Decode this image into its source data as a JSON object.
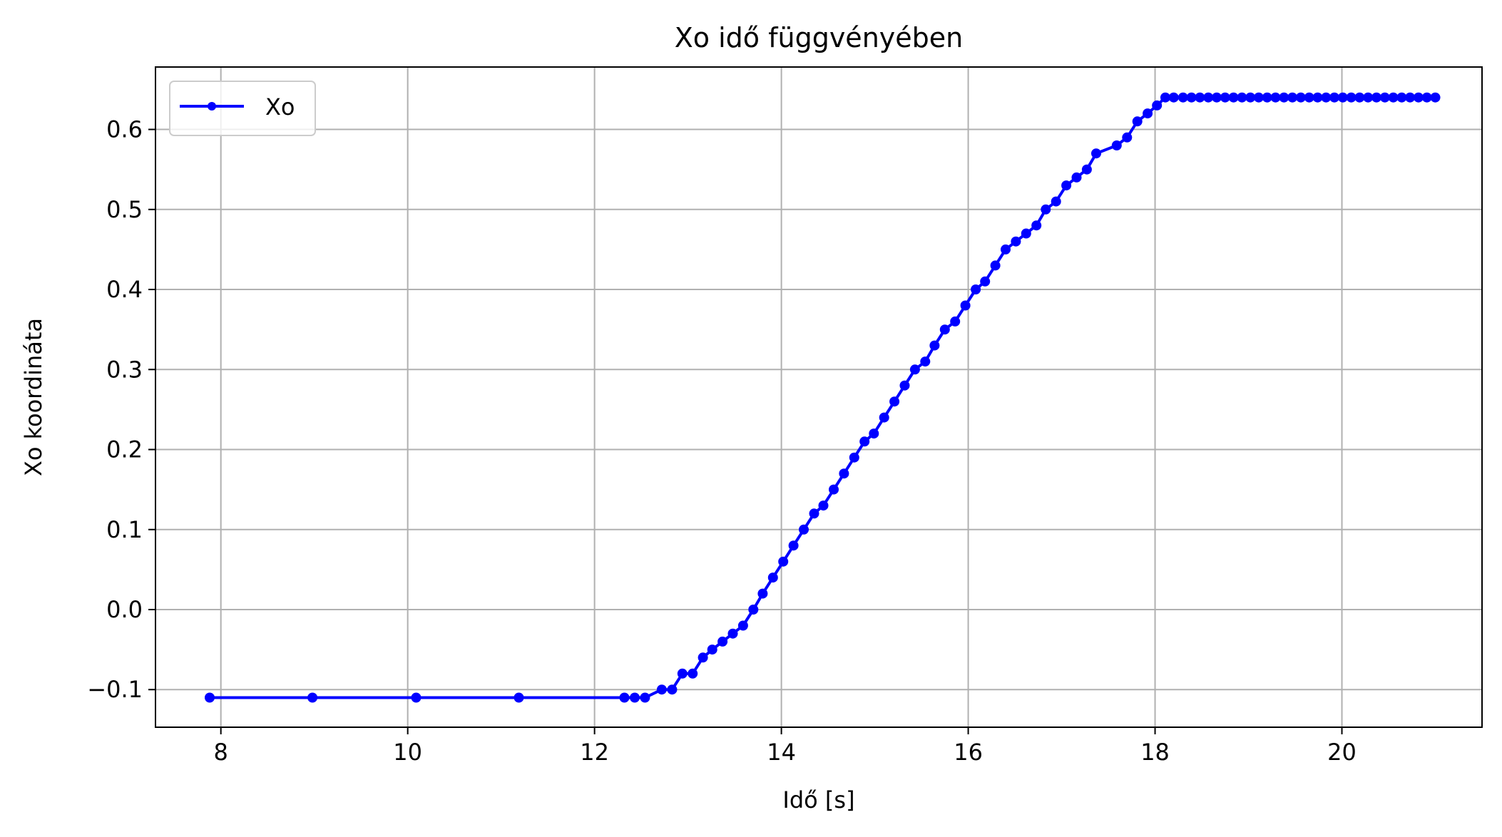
{
  "chart_data": {
    "type": "line",
    "title": "Xo idő függvényében",
    "xlabel": "Idő [s]",
    "ylabel": "Xo koordináta",
    "xlim": [
      7.3,
      21.5
    ],
    "ylim": [
      -0.147,
      0.678
    ],
    "xticks": [
      8,
      10,
      12,
      14,
      16,
      18,
      20
    ],
    "yticks": [
      -0.1,
      0.0,
      0.1,
      0.2,
      0.3,
      0.4,
      0.5,
      0.6
    ],
    "ytick_labels": [
      "−0.1",
      "0.0",
      "0.1",
      "0.2",
      "0.3",
      "0.4",
      "0.5",
      "0.6"
    ],
    "grid": true,
    "legend_position": "top-left",
    "series": [
      {
        "name": "Xo",
        "color": "#0000ff",
        "marker": "circle",
        "points": [
          [
            7.88,
            -0.11
          ],
          [
            8.98,
            -0.11
          ],
          [
            10.09,
            -0.11
          ],
          [
            11.19,
            -0.11
          ],
          [
            12.32,
            -0.11
          ],
          [
            12.43,
            -0.11
          ],
          [
            12.54,
            -0.11
          ],
          [
            12.72,
            -0.1
          ],
          [
            12.83,
            -0.1
          ],
          [
            12.94,
            -0.08
          ],
          [
            13.05,
            -0.08
          ],
          [
            13.16,
            -0.06
          ],
          [
            13.26,
            -0.05
          ],
          [
            13.37,
            -0.04
          ],
          [
            13.48,
            -0.03
          ],
          [
            13.59,
            -0.02
          ],
          [
            13.7,
            0.0
          ],
          [
            13.8,
            0.02
          ],
          [
            13.91,
            0.04
          ],
          [
            14.02,
            0.06
          ],
          [
            14.13,
            0.08
          ],
          [
            14.24,
            0.1
          ],
          [
            14.35,
            0.12
          ],
          [
            14.45,
            0.13
          ],
          [
            14.56,
            0.15
          ],
          [
            14.67,
            0.17
          ],
          [
            14.78,
            0.19
          ],
          [
            14.89,
            0.21
          ],
          [
            14.99,
            0.22
          ],
          [
            15.1,
            0.24
          ],
          [
            15.21,
            0.26
          ],
          [
            15.32,
            0.28
          ],
          [
            15.43,
            0.3
          ],
          [
            15.54,
            0.31
          ],
          [
            15.64,
            0.33
          ],
          [
            15.75,
            0.35
          ],
          [
            15.86,
            0.36
          ],
          [
            15.97,
            0.38
          ],
          [
            16.08,
            0.4
          ],
          [
            16.18,
            0.41
          ],
          [
            16.29,
            0.43
          ],
          [
            16.4,
            0.45
          ],
          [
            16.51,
            0.46
          ],
          [
            16.62,
            0.47
          ],
          [
            16.73,
            0.48
          ],
          [
            16.83,
            0.5
          ],
          [
            16.94,
            0.51
          ],
          [
            17.05,
            0.53
          ],
          [
            17.16,
            0.54
          ],
          [
            17.27,
            0.55
          ],
          [
            17.37,
            0.57
          ],
          [
            17.59,
            0.58
          ],
          [
            17.7,
            0.59
          ],
          [
            17.81,
            0.61
          ],
          [
            17.92,
            0.62
          ],
          [
            18.02,
            0.63
          ],
          [
            18.11,
            0.64
          ],
          [
            18.2,
            0.64
          ],
          [
            18.3,
            0.64
          ],
          [
            18.39,
            0.64
          ],
          [
            18.48,
            0.64
          ],
          [
            18.57,
            0.64
          ],
          [
            18.66,
            0.64
          ],
          [
            18.75,
            0.64
          ],
          [
            18.84,
            0.64
          ],
          [
            18.93,
            0.64
          ],
          [
            19.02,
            0.64
          ],
          [
            19.11,
            0.64
          ],
          [
            19.2,
            0.64
          ],
          [
            19.29,
            0.64
          ],
          [
            19.38,
            0.64
          ],
          [
            19.47,
            0.64
          ],
          [
            19.56,
            0.64
          ],
          [
            19.65,
            0.64
          ],
          [
            19.74,
            0.64
          ],
          [
            19.83,
            0.64
          ],
          [
            19.92,
            0.64
          ],
          [
            20.01,
            0.64
          ],
          [
            20.1,
            0.64
          ],
          [
            20.19,
            0.64
          ],
          [
            20.28,
            0.64
          ],
          [
            20.37,
            0.64
          ],
          [
            20.46,
            0.64
          ],
          [
            20.55,
            0.64
          ],
          [
            20.64,
            0.64
          ],
          [
            20.73,
            0.64
          ],
          [
            20.82,
            0.64
          ],
          [
            20.91,
            0.64
          ],
          [
            21.0,
            0.64
          ]
        ]
      }
    ]
  }
}
